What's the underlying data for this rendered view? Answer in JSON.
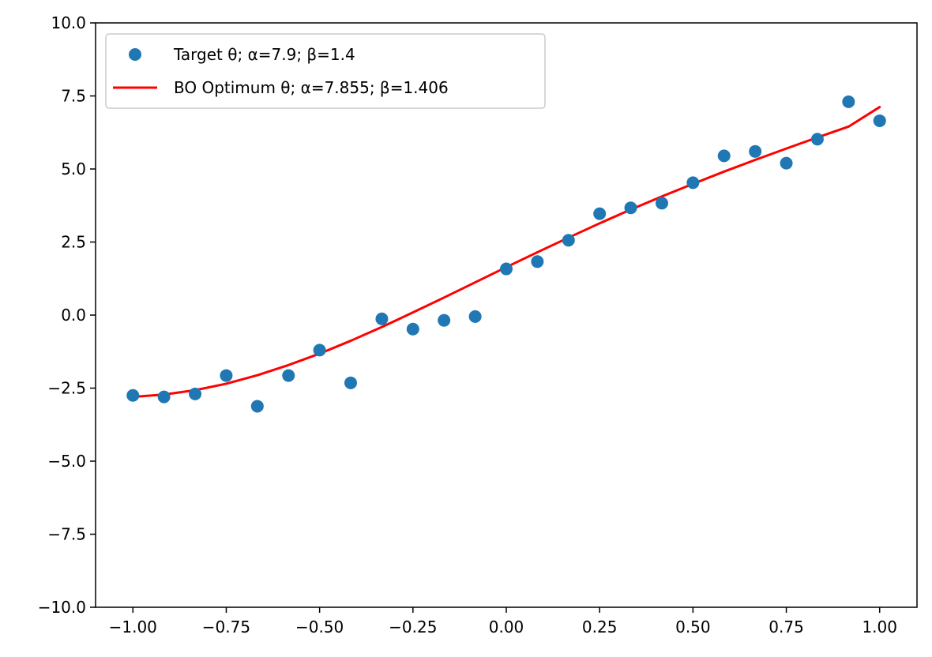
{
  "chart_data": {
    "type": "scatter",
    "title": "",
    "xlabel": "",
    "ylabel": "",
    "xlim": [
      -1.1,
      1.1
    ],
    "ylim": [
      -10,
      10
    ],
    "grid": false,
    "legend_position": "top-left",
    "x_ticks": [
      {
        "value": -1.0,
        "label": "−1.00"
      },
      {
        "value": -0.75,
        "label": "−0.75"
      },
      {
        "value": -0.5,
        "label": "−0.50"
      },
      {
        "value": -0.25,
        "label": "−0.25"
      },
      {
        "value": 0.0,
        "label": "0.00"
      },
      {
        "value": 0.25,
        "label": "0.25"
      },
      {
        "value": 0.5,
        "label": "0.50"
      },
      {
        "value": 0.75,
        "label": "0.75"
      },
      {
        "value": 1.0,
        "label": "1.00"
      }
    ],
    "y_ticks": [
      {
        "value": -10.0,
        "label": "−10.0"
      },
      {
        "value": -7.5,
        "label": "−7.5"
      },
      {
        "value": -5.0,
        "label": "−5.0"
      },
      {
        "value": -2.5,
        "label": "−2.5"
      },
      {
        "value": 0.0,
        "label": "0.0"
      },
      {
        "value": 2.5,
        "label": "2.5"
      },
      {
        "value": 5.0,
        "label": "5.0"
      },
      {
        "value": 7.5,
        "label": "7.5"
      },
      {
        "value": 10.0,
        "label": "10.0"
      }
    ],
    "series": [
      {
        "name": "Target θ; α=7.9; β=1.4",
        "kind": "scatter",
        "color": "#1f77b4",
        "x": [
          -1.0,
          -0.9167,
          -0.8333,
          -0.75,
          -0.6667,
          -0.5833,
          -0.5,
          -0.4167,
          -0.3333,
          -0.25,
          -0.1667,
          -0.0833,
          0.0,
          0.0833,
          0.1667,
          0.25,
          0.3333,
          0.4167,
          0.5,
          0.5833,
          0.6667,
          0.75,
          0.8333,
          0.9167,
          1.0
        ],
        "y": [
          -2.75,
          -2.8,
          -2.7,
          -2.07,
          -3.12,
          -2.07,
          -1.2,
          -2.32,
          -0.13,
          -0.48,
          -0.18,
          -0.05,
          1.58,
          1.83,
          2.56,
          3.47,
          3.67,
          3.83,
          4.53,
          5.45,
          5.6,
          5.2,
          6.02,
          7.3,
          6.65
        ]
      },
      {
        "name": "BO Optimum θ; α=7.855; β=1.406",
        "kind": "line",
        "color": "#ff0000",
        "x": [
          -1.0,
          -0.9167,
          -0.8333,
          -0.75,
          -0.6667,
          -0.5833,
          -0.5,
          -0.4167,
          -0.3333,
          -0.25,
          -0.1667,
          -0.0833,
          0.0,
          0.0833,
          0.1667,
          0.25,
          0.3333,
          0.4167,
          0.5,
          0.5833,
          0.6667,
          0.75,
          0.8333,
          0.9167,
          1.0
        ],
        "y": [
          -2.8,
          -2.72,
          -2.57,
          -2.35,
          -2.06,
          -1.71,
          -1.32,
          -0.88,
          -0.41,
          0.09,
          0.6,
          1.12,
          1.64,
          2.15,
          2.65,
          3.14,
          3.61,
          4.06,
          4.49,
          4.91,
          5.31,
          5.7,
          6.08,
          6.45,
          7.12
        ]
      }
    ]
  }
}
